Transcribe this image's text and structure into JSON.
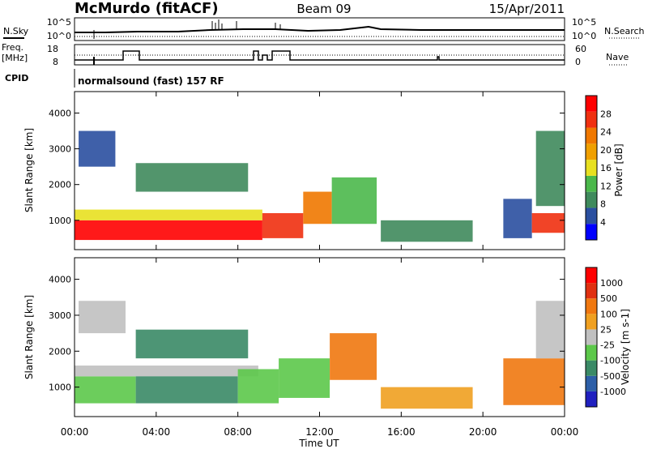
{
  "header": {
    "station": "McMurdo (fitACF)",
    "beam": "Beam 09",
    "date": "15/Apr/2011"
  },
  "top_panels": {
    "nsky_label": "N.Sky",
    "nsearch_label": "N.Search",
    "noise_ticks_left": [
      "10^5",
      "10^0"
    ],
    "noise_ticks_right": [
      "10^5",
      "10^0"
    ],
    "freq_label_1": "Freq.",
    "freq_label_2": "[MHz]",
    "freq_ticks": [
      "18",
      "8"
    ],
    "nave_label": "Nave",
    "nave_ticks": [
      "60",
      "0"
    ],
    "cpid_label": "CPID",
    "cpid_text": "normalsound (fast) 157 RF"
  },
  "axes": {
    "ylabel": "Slant Range [km]",
    "xlabel": "Time UT",
    "y_ticks": [
      "1000",
      "2000",
      "3000",
      "4000"
    ],
    "x_ticks": [
      "00:00",
      "04:00",
      "08:00",
      "12:00",
      "16:00",
      "20:00",
      "00:00"
    ]
  },
  "colors": {
    "power": [
      "#0000ff",
      "#2a4fa0",
      "#3f8a5c",
      "#4bb84b",
      "#e8e020",
      "#f0a000",
      "#f07800",
      "#f03010",
      "#ff0000"
    ],
    "velocity": [
      "#2020c0",
      "#2d5fa8",
      "#3a8a66",
      "#5cc84a",
      "#c0c0c0",
      "#f0a020",
      "#f07810",
      "#e03010",
      "#ff0000"
    ]
  },
  "chart_data": [
    {
      "type": "heatmap",
      "name": "power",
      "xlabel": "Time UT",
      "ylabel": "Slant Range [km]",
      "xlim": [
        0,
        24
      ],
      "ylim": [
        180,
        4600
      ],
      "colorbar_label": "Power [dB]",
      "colorbar_ticks": [
        "28",
        "24",
        "20",
        "16",
        "12",
        "8",
        "4"
      ],
      "regions": [
        {
          "t0": 0.0,
          "t1": 9.2,
          "r0": 450,
          "r1": 1000,
          "level": 8
        },
        {
          "t0": 0.0,
          "t1": 9.2,
          "r0": 1000,
          "r1": 1300,
          "level": 4
        },
        {
          "t0": 9.2,
          "t1": 11.2,
          "r0": 500,
          "r1": 1200,
          "level": 7
        },
        {
          "t0": 11.2,
          "t1": 12.6,
          "r0": 900,
          "r1": 1800,
          "level": 6
        },
        {
          "t0": 12.6,
          "t1": 14.8,
          "r0": 900,
          "r1": 2200,
          "level": 3
        },
        {
          "t0": 0.2,
          "t1": 2.0,
          "r0": 2500,
          "r1": 3500,
          "level": 1
        },
        {
          "t0": 3.0,
          "t1": 8.5,
          "r0": 1800,
          "r1": 2600,
          "level": 2
        },
        {
          "t0": 15.0,
          "t1": 19.5,
          "r0": 400,
          "r1": 1000,
          "level": 2
        },
        {
          "t0": 21.0,
          "t1": 22.4,
          "r0": 500,
          "r1": 1600,
          "level": 1
        },
        {
          "t0": 22.4,
          "t1": 24.0,
          "r0": 650,
          "r1": 1200,
          "level": 7
        },
        {
          "t0": 22.6,
          "t1": 24.0,
          "r0": 1400,
          "r1": 3500,
          "level": 2
        }
      ]
    },
    {
      "type": "heatmap",
      "name": "velocity",
      "xlabel": "Time UT",
      "ylabel": "Slant Range [km]",
      "xlim": [
        0,
        24
      ],
      "ylim": [
        180,
        4600
      ],
      "colorbar_label": "Velocity [m s-1]",
      "colorbar_ticks": [
        "1000",
        "500",
        "100",
        "25",
        "-25",
        "-100",
        "-500",
        "-1000"
      ],
      "regions": [
        {
          "t0": 0.0,
          "t1": 3.0,
          "r0": 550,
          "r1": 1300,
          "level": 3
        },
        {
          "t0": 0.0,
          "t1": 9.0,
          "r0": 1300,
          "r1": 1600,
          "level": 4
        },
        {
          "t0": 3.0,
          "t1": 8.0,
          "r0": 550,
          "r1": 1300,
          "level": 2
        },
        {
          "t0": 8.0,
          "t1": 10.0,
          "r0": 550,
          "r1": 1500,
          "level": 3
        },
        {
          "t0": 10.0,
          "t1": 12.5,
          "r0": 700,
          "r1": 1800,
          "level": 3
        },
        {
          "t0": 12.5,
          "t1": 14.8,
          "r0": 1200,
          "r1": 2500,
          "level": 6
        },
        {
          "t0": 0.2,
          "t1": 2.5,
          "r0": 2500,
          "r1": 3400,
          "level": 4
        },
        {
          "t0": 3.0,
          "t1": 8.5,
          "r0": 1800,
          "r1": 2600,
          "level": 2
        },
        {
          "t0": 15.0,
          "t1": 19.5,
          "r0": 400,
          "r1": 1000,
          "level": 5
        },
        {
          "t0": 21.0,
          "t1": 24.0,
          "r0": 500,
          "r1": 1800,
          "level": 6
        },
        {
          "t0": 22.6,
          "t1": 24.0,
          "r0": 1800,
          "r1": 3400,
          "level": 4
        }
      ]
    }
  ]
}
